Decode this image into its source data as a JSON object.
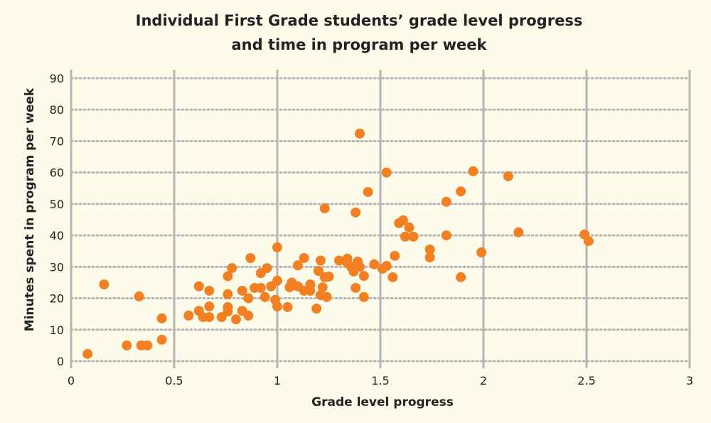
{
  "chart_data": {
    "type": "scatter",
    "title": [
      "Individual First Grade students’ grade level progress",
      "and time in program per week"
    ],
    "xlabel": "Grade level progress",
    "ylabel": "Minutes spent in program per week",
    "xlim": [
      0,
      3
    ],
    "ylim": [
      0,
      90
    ],
    "xticks": [
      "0",
      "0.5",
      "1",
      "1.5",
      "2",
      "2.5",
      "3"
    ],
    "yticks": [
      "0",
      "10",
      "20",
      "30",
      "40",
      "50",
      "60",
      "70",
      "80",
      "90"
    ],
    "grid": {
      "vertical": "solid",
      "horizontal": "dotted"
    },
    "colors": {
      "point": "#f28023",
      "grid": "#b5b5b5",
      "background": "#fdfbe9"
    },
    "points": [
      [
        0.08,
        2.3
      ],
      [
        0.16,
        24.4
      ],
      [
        0.33,
        20.6
      ],
      [
        0.27,
        5
      ],
      [
        0.34,
        5
      ],
      [
        0.37,
        5
      ],
      [
        0.44,
        6.8
      ],
      [
        0.44,
        13.6
      ],
      [
        0.57,
        14.5
      ],
      [
        0.62,
        16
      ],
      [
        0.62,
        23.8
      ],
      [
        0.64,
        14
      ],
      [
        0.67,
        22.4
      ],
      [
        0.67,
        14
      ],
      [
        0.67,
        17.4
      ],
      [
        0.73,
        14
      ],
      [
        0.76,
        27
      ],
      [
        0.76,
        21.3
      ],
      [
        0.76,
        15.8
      ],
      [
        0.76,
        17.2
      ],
      [
        0.78,
        29.6
      ],
      [
        0.8,
        13.3
      ],
      [
        0.83,
        16
      ],
      [
        0.83,
        22.4
      ],
      [
        0.86,
        14.5
      ],
      [
        0.86,
        20
      ],
      [
        0.87,
        32.8
      ],
      [
        0.89,
        23.3
      ],
      [
        0.92,
        23.3
      ],
      [
        0.92,
        28
      ],
      [
        0.95,
        29.6
      ],
      [
        0.94,
        20.4
      ],
      [
        0.97,
        23.8
      ],
      [
        0.99,
        19.5
      ],
      [
        1.0,
        36.2
      ],
      [
        1.0,
        25.6
      ],
      [
        1.0,
        17.4
      ],
      [
        1.05,
        17.2
      ],
      [
        1.06,
        23.5
      ],
      [
        1.07,
        25
      ],
      [
        1.1,
        30.5
      ],
      [
        1.1,
        23.8
      ],
      [
        1.13,
        32.8
      ],
      [
        1.13,
        22.4
      ],
      [
        1.16,
        24.4
      ],
      [
        1.16,
        22.4
      ],
      [
        1.19,
        16.7
      ],
      [
        1.2,
        28.7
      ],
      [
        1.21,
        32
      ],
      [
        1.21,
        21
      ],
      [
        1.22,
        23.5
      ],
      [
        1.23,
        48.6
      ],
      [
        1.23,
        26.7
      ],
      [
        1.24,
        20.4
      ],
      [
        1.25,
        26.9
      ],
      [
        1.3,
        32
      ],
      [
        1.34,
        32.6
      ],
      [
        1.34,
        31.2
      ],
      [
        1.36,
        29.9
      ],
      [
        1.38,
        47.3
      ],
      [
        1.38,
        23.3
      ],
      [
        1.37,
        28.5
      ],
      [
        1.39,
        31.7
      ],
      [
        1.4,
        30
      ],
      [
        1.4,
        72.4
      ],
      [
        1.42,
        20.4
      ],
      [
        1.42,
        27.1
      ],
      [
        1.44,
        53.8
      ],
      [
        1.47,
        30.8
      ],
      [
        1.51,
        29.4
      ],
      [
        1.53,
        30.3
      ],
      [
        1.53,
        60
      ],
      [
        1.56,
        26.7
      ],
      [
        1.57,
        33.5
      ],
      [
        1.59,
        43.9
      ],
      [
        1.61,
        44.8
      ],
      [
        1.64,
        42.5
      ],
      [
        1.62,
        39.6
      ],
      [
        1.66,
        39.6
      ],
      [
        1.74,
        35.5
      ],
      [
        1.74,
        33
      ],
      [
        1.82,
        50.7
      ],
      [
        1.82,
        40
      ],
      [
        1.89,
        54
      ],
      [
        1.89,
        26.7
      ],
      [
        1.95,
        60.4
      ],
      [
        1.99,
        34.6
      ],
      [
        2.12,
        58.8
      ],
      [
        2.17,
        41
      ],
      [
        2.49,
        40.3
      ],
      [
        2.51,
        38.2
      ]
    ]
  }
}
